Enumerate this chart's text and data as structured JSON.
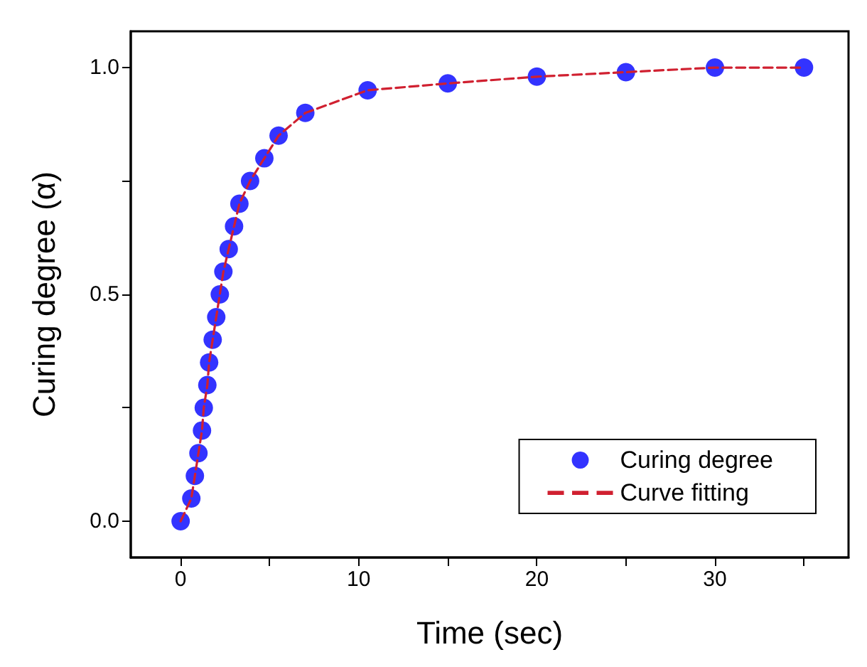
{
  "chart_data": {
    "type": "scatter",
    "xlabel": "Time (sec)",
    "ylabel": "Curing degree (α)",
    "xlim": [
      -2.8,
      37.5
    ],
    "ylim": [
      -0.08,
      1.08
    ],
    "xticks": [
      0,
      {
        "value": 5,
        "label": null
      },
      10,
      {
        "value": 15,
        "label": null
      },
      20,
      {
        "value": 25,
        "label": null
      },
      30,
      {
        "value": 35,
        "label": null
      }
    ],
    "yticks": [
      {
        "value": 0,
        "label": "0.0"
      },
      {
        "value": 0.25,
        "label": null
      },
      {
        "value": 0.5,
        "label": "0.5"
      },
      {
        "value": 0.75,
        "label": null
      },
      {
        "value": 1,
        "label": "1.0"
      }
    ],
    "grid": false,
    "legend": "bottom right",
    "series": [
      {
        "name": "Curing degree",
        "type": "scatter",
        "color": "#0000ff",
        "marker": "circle",
        "x": [
          0,
          0.6,
          0.8,
          1.0,
          1.2,
          1.3,
          1.5,
          1.6,
          1.8,
          2.0,
          2.2,
          2.4,
          2.7,
          3.0,
          3.3,
          3.9,
          4.7,
          5.5,
          7.0,
          10.5,
          15,
          20,
          25,
          30,
          35
        ],
        "values": [
          0,
          0.05,
          0.1,
          0.15,
          0.2,
          0.25,
          0.3,
          0.35,
          0.4,
          0.45,
          0.5,
          0.55,
          0.6,
          0.65,
          0.7,
          0.75,
          0.8,
          0.85,
          0.9,
          0.95,
          0.965,
          0.98,
          0.99,
          1.0,
          1.0
        ]
      },
      {
        "name": "Curve fitting",
        "type": "line",
        "color": "#d02030",
        "marker": "none",
        "line_style": "dashed",
        "x": [
          0,
          0.6,
          0.8,
          1.0,
          1.2,
          1.3,
          1.5,
          1.6,
          1.8,
          2.0,
          2.2,
          2.4,
          2.7,
          3.0,
          3.3,
          3.9,
          4.7,
          5.5,
          7.0,
          10.5,
          15,
          20,
          25,
          30,
          35
        ],
        "values": [
          0,
          0.05,
          0.1,
          0.15,
          0.2,
          0.25,
          0.3,
          0.35,
          0.4,
          0.45,
          0.5,
          0.55,
          0.6,
          0.65,
          0.7,
          0.75,
          0.8,
          0.85,
          0.9,
          0.95,
          0.965,
          0.98,
          0.99,
          1.0,
          1.0
        ]
      }
    ]
  }
}
